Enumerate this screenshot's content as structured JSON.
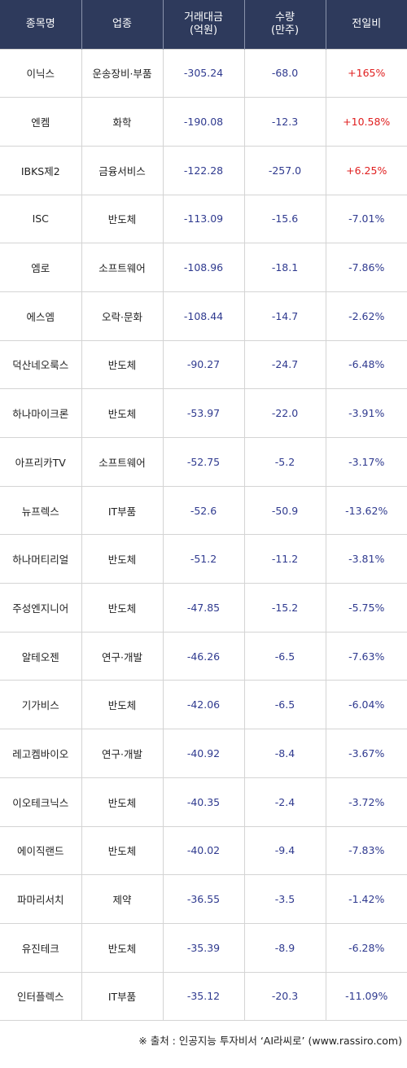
{
  "table": {
    "headers": [
      "종목명",
      "업종",
      "거래대금\n(억원)",
      "수량\n(만주)",
      "전일비"
    ],
    "rows": [
      {
        "name": "이닉스",
        "sector": "운송장비·부품",
        "amount": "-305.24",
        "qty": "-68.0",
        "change": "+165%",
        "dir": "up"
      },
      {
        "name": "엔켐",
        "sector": "화학",
        "amount": "-190.08",
        "qty": "-12.3",
        "change": "+10.58%",
        "dir": "up"
      },
      {
        "name": "IBKS제2",
        "sector": "금융서비스",
        "amount": "-122.28",
        "qty": "-257.0",
        "change": "+6.25%",
        "dir": "up"
      },
      {
        "name": "ISC",
        "sector": "반도체",
        "amount": "-113.09",
        "qty": "-15.6",
        "change": "-7.01%",
        "dir": "down"
      },
      {
        "name": "엠로",
        "sector": "소프트웨어",
        "amount": "-108.96",
        "qty": "-18.1",
        "change": "-7.86%",
        "dir": "down"
      },
      {
        "name": "에스엠",
        "sector": "오락·문화",
        "amount": "-108.44",
        "qty": "-14.7",
        "change": "-2.62%",
        "dir": "down"
      },
      {
        "name": "덕산네오룩스",
        "sector": "반도체",
        "amount": "-90.27",
        "qty": "-24.7",
        "change": "-6.48%",
        "dir": "down"
      },
      {
        "name": "하나마이크론",
        "sector": "반도체",
        "amount": "-53.97",
        "qty": "-22.0",
        "change": "-3.91%",
        "dir": "down"
      },
      {
        "name": "아프리카TV",
        "sector": "소프트웨어",
        "amount": "-52.75",
        "qty": "-5.2",
        "change": "-3.17%",
        "dir": "down"
      },
      {
        "name": "뉴프렉스",
        "sector": "IT부품",
        "amount": "-52.6",
        "qty": "-50.9",
        "change": "-13.62%",
        "dir": "down"
      },
      {
        "name": "하나머티리얼",
        "sector": "반도체",
        "amount": "-51.2",
        "qty": "-11.2",
        "change": "-3.81%",
        "dir": "down"
      },
      {
        "name": "주성엔지니어",
        "sector": "반도체",
        "amount": "-47.85",
        "qty": "-15.2",
        "change": "-5.75%",
        "dir": "down"
      },
      {
        "name": "알테오젠",
        "sector": "연구·개발",
        "amount": "-46.26",
        "qty": "-6.5",
        "change": "-7.63%",
        "dir": "down"
      },
      {
        "name": "기가비스",
        "sector": "반도체",
        "amount": "-42.06",
        "qty": "-6.5",
        "change": "-6.04%",
        "dir": "down"
      },
      {
        "name": "레고켐바이오",
        "sector": "연구·개발",
        "amount": "-40.92",
        "qty": "-8.4",
        "change": "-3.67%",
        "dir": "down"
      },
      {
        "name": "이오테크닉스",
        "sector": "반도체",
        "amount": "-40.35",
        "qty": "-2.4",
        "change": "-3.72%",
        "dir": "down"
      },
      {
        "name": "에이직랜드",
        "sector": "반도체",
        "amount": "-40.02",
        "qty": "-9.4",
        "change": "-7.83%",
        "dir": "down"
      },
      {
        "name": "파마리서치",
        "sector": "제약",
        "amount": "-36.55",
        "qty": "-3.5",
        "change": "-1.42%",
        "dir": "down"
      },
      {
        "name": "유진테크",
        "sector": "반도체",
        "amount": "-35.39",
        "qty": "-8.9",
        "change": "-6.28%",
        "dir": "down"
      },
      {
        "name": "인터플렉스",
        "sector": "IT부품",
        "amount": "-35.12",
        "qty": "-20.3",
        "change": "-11.09%",
        "dir": "down"
      }
    ]
  },
  "source": "※ 출처 : 인공지능 투자비서 ‘AI라씨로’ (www.rassiro.com)",
  "colors": {
    "header_bg": "#2e3a5c",
    "up": "#e02020",
    "down": "#2f3a8f"
  }
}
